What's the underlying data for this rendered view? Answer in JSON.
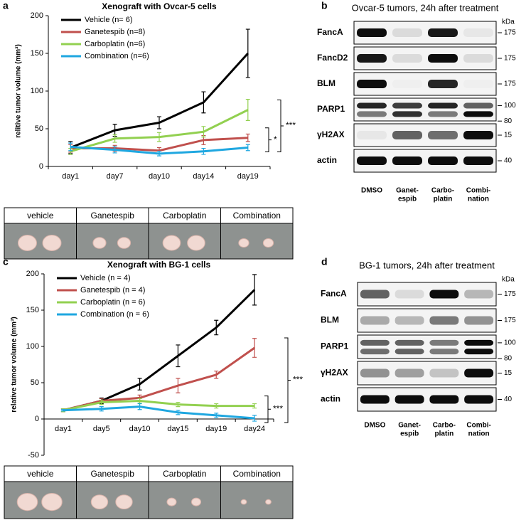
{
  "panel_labels": [
    "a",
    "b",
    "c",
    "d"
  ],
  "chart_data": [
    {
      "type": "line",
      "title": "Xenograft with Ovcar-5 cells",
      "y_label": "relitive tumor volume (mm³)",
      "categories": [
        "day1",
        "day7",
        "day10",
        "day14",
        "day19"
      ],
      "ylim": [
        0,
        200
      ],
      "yticks": [
        0,
        50,
        100,
        150,
        200
      ],
      "legend": "upper left",
      "series": [
        {
          "name": "Vehicle (n= 6)",
          "color": "#000000",
          "values": [
            25,
            48,
            58,
            85,
            150
          ],
          "errors": [
            8,
            8,
            8,
            14,
            32
          ]
        },
        {
          "name": "Ganetespib (n=8)",
          "color": "#c0504d",
          "values": [
            24,
            24,
            21,
            35,
            38
          ],
          "errors": [
            5,
            4,
            4,
            6,
            5
          ]
        },
        {
          "name": "Carboplatin (n=6)",
          "color": "#92d050",
          "values": [
            20,
            37,
            39,
            46,
            75
          ],
          "errors": [
            4,
            5,
            6,
            7,
            14
          ]
        },
        {
          "name": "Combination (n=6)",
          "color": "#1fa7e0",
          "values": [
            26,
            22,
            17,
            20,
            25
          ],
          "errors": [
            5,
            4,
            3,
            4,
            4
          ]
        }
      ],
      "annotations": [
        "***",
        "*"
      ]
    },
    {
      "type": "line",
      "title": "Xenograft with BG-1 cells",
      "y_label": "relative tumor volume (mm³)",
      "categories": [
        "day1",
        "day5",
        "day10",
        "day15",
        "day19",
        "day24"
      ],
      "ylim": [
        -50,
        200
      ],
      "yticks": [
        -50,
        0,
        50,
        100,
        150,
        200
      ],
      "legend": "upper left",
      "series": [
        {
          "name": "Vehicle (n = 4)",
          "color": "#000000",
          "values": [
            12,
            25,
            48,
            87,
            126,
            178
          ],
          "errors": [
            2,
            4,
            8,
            15,
            10,
            21
          ]
        },
        {
          "name": "Ganetespib (n = 4)",
          "color": "#c0504d",
          "values": [
            12,
            25,
            29,
            46,
            61,
            98
          ],
          "errors": [
            2,
            3,
            4,
            10,
            5,
            13
          ]
        },
        {
          "name": "Carboplatin (n = 6)",
          "color": "#92d050",
          "values": [
            12,
            23,
            25,
            20,
            18,
            18
          ],
          "errors": [
            2,
            3,
            3,
            3,
            3,
            3
          ]
        },
        {
          "name": "Combination (n = 6)",
          "color": "#1fa7e0",
          "values": [
            12,
            14,
            17,
            9,
            5,
            1
          ],
          "errors": [
            1,
            3,
            4,
            3,
            3,
            4
          ]
        }
      ],
      "annotations": [
        "***",
        "***"
      ]
    }
  ],
  "photo_strips": [
    {
      "labels": [
        "vehicle",
        "Ganetespib",
        "Carboplatin",
        "Combination"
      ]
    },
    {
      "labels": [
        "vehicle",
        "Ganetespib",
        "Carboplatin",
        "Combination"
      ]
    }
  ],
  "blots": [
    {
      "title": "Ovcar-5 tumors, 24h after treatment",
      "unit": "kDa",
      "rows": [
        {
          "label": "FancA",
          "markers": [
            175
          ]
        },
        {
          "label": "FancD2",
          "markers": [
            175
          ]
        },
        {
          "label": "BLM",
          "markers": [
            175
          ]
        },
        {
          "label": "PARP1",
          "markers": [
            100,
            80
          ]
        },
        {
          "label": "γH2AX",
          "markers": [
            15
          ]
        },
        {
          "label": "actin",
          "markers": [
            40
          ]
        }
      ],
      "lanes": [
        [
          "DMSO"
        ],
        [
          "Ganet-",
          "espib"
        ],
        [
          "Carbo-",
          "platin"
        ],
        [
          "Combi-",
          "nation"
        ]
      ]
    },
    {
      "title": "BG-1 tumors, 24h after treatment",
      "unit": "kDa",
      "rows": [
        {
          "label": "FancA",
          "markers": [
            175
          ]
        },
        {
          "label": "BLM",
          "markers": [
            175
          ]
        },
        {
          "label": "PARP1",
          "markers": [
            100,
            80
          ]
        },
        {
          "label": "γH2AX",
          "markers": [
            15
          ]
        },
        {
          "label": "actin",
          "markers": [
            40
          ]
        }
      ],
      "lanes": [
        [
          "DMSO"
        ],
        [
          "Ganet-",
          "espib"
        ],
        [
          "Carbo-",
          "platin"
        ],
        [
          "Combi-",
          "nation"
        ]
      ]
    }
  ]
}
